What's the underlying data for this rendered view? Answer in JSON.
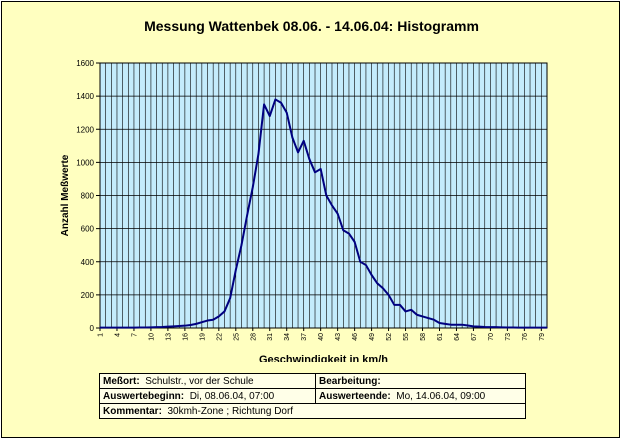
{
  "chart_data": {
    "type": "area",
    "title": "Messung Wattenbek 08.06. - 14.06.04: Histogramm",
    "xlabel": "Geschwindigkeit in km/h",
    "ylabel": "Anzahl Meßwerte",
    "xlim": [
      1,
      80
    ],
    "ylim": [
      0,
      1600
    ],
    "yticks": [
      0,
      200,
      400,
      600,
      800,
      1000,
      1200,
      1400,
      1600
    ],
    "xticks": [
      1,
      4,
      7,
      10,
      13,
      16,
      19,
      22,
      25,
      28,
      31,
      34,
      37,
      40,
      43,
      46,
      49,
      52,
      55,
      58,
      61,
      64,
      67,
      70,
      73,
      76,
      79
    ],
    "grid": true,
    "colors": {
      "fill": "#c4ecfc",
      "line": "#000080",
      "plot_background": "#c4ecfc"
    },
    "series": [
      {
        "x": [
          1,
          2,
          3,
          4,
          5,
          6,
          7,
          8,
          9,
          10,
          11,
          12,
          13,
          14,
          15,
          16,
          17,
          18,
          19,
          20,
          21,
          22,
          23,
          24,
          25,
          26,
          27,
          28,
          29,
          30,
          31,
          32,
          33,
          34,
          35,
          36,
          37,
          38,
          39,
          40,
          41,
          42,
          43,
          44,
          45,
          46,
          47,
          48,
          49,
          50,
          51,
          52,
          53,
          54,
          55,
          56,
          57,
          58,
          59,
          60,
          61,
          62,
          63,
          64,
          65,
          66,
          67,
          68,
          69,
          70,
          71,
          72,
          73,
          74,
          75,
          76,
          77,
          78,
          79,
          80
        ],
        "values": [
          2,
          2,
          2,
          2,
          2,
          2,
          2,
          3,
          3,
          4,
          5,
          6,
          8,
          10,
          12,
          14,
          18,
          25,
          35,
          45,
          50,
          70,
          100,
          180,
          350,
          500,
          680,
          850,
          1050,
          1350,
          1280,
          1380,
          1360,
          1300,
          1150,
          1060,
          1130,
          1020,
          940,
          960,
          800,
          740,
          690,
          590,
          570,
          520,
          400,
          380,
          320,
          270,
          240,
          200,
          140,
          140,
          100,
          110,
          80,
          70,
          60,
          50,
          30,
          25,
          20,
          20,
          20,
          15,
          10,
          8,
          6,
          5,
          5,
          4,
          3,
          3,
          2,
          2,
          2,
          2,
          2,
          2
        ]
      }
    ]
  },
  "info": {
    "messort_label": "Meßort:",
    "messort_value": "Schulstr., vor der Schule",
    "bearbeitung_label": "Bearbeitung:",
    "bearbeitung_value": "",
    "auswertebeginn_label": "Auswertebeginn:",
    "auswertebeginn_value": "Di, 08.06.04, 07:00",
    "auswerteende_label": "Auswerteende:",
    "auswerteende_value": "Mo, 14.06.04, 09:00",
    "kommentar_label": "Kommentar:",
    "kommentar_value": "30kmh-Zone ; Richtung Dorf"
  }
}
